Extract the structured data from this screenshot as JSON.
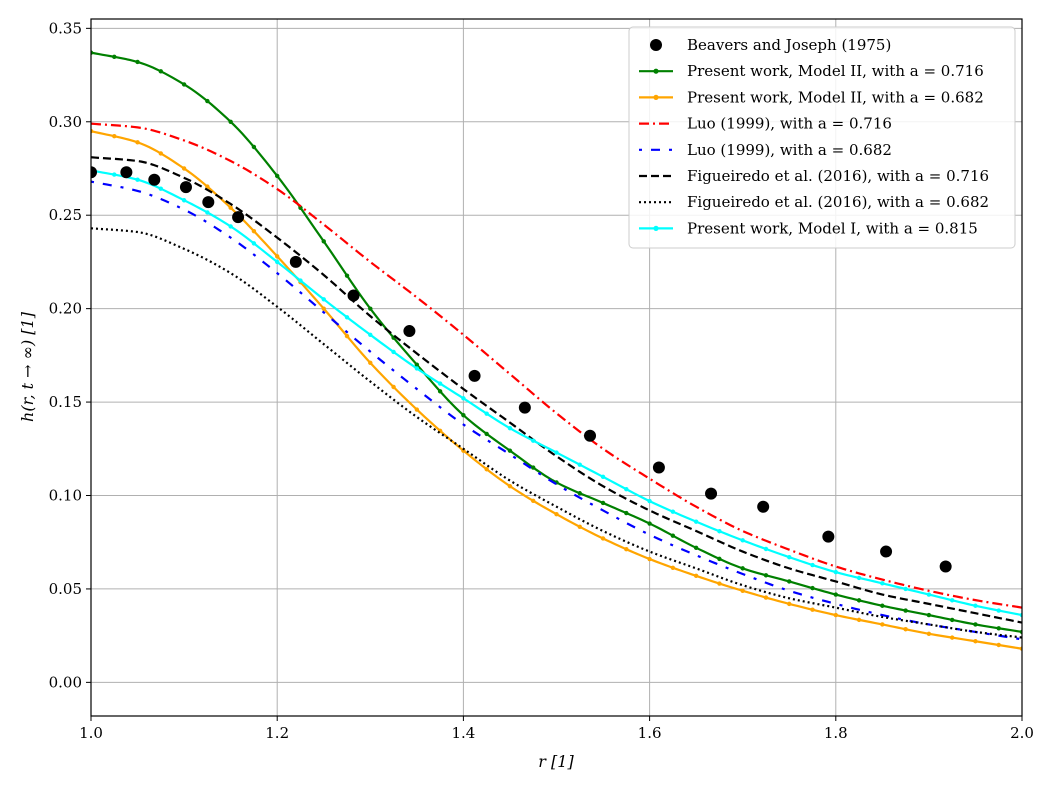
{
  "chart_data": {
    "type": "line",
    "title": "",
    "xlabel": "r [1]",
    "ylabel": "h(r, t → ∞) [1]",
    "xlim": [
      1.0,
      2.0
    ],
    "ylim": [
      -0.018,
      0.355
    ],
    "grid": true,
    "legend_position": "top-right",
    "xticks": [
      1.0,
      1.2,
      1.4,
      1.6,
      1.8,
      2.0
    ],
    "xtick_labels": [
      "1.0",
      "1.2",
      "1.4",
      "1.6",
      "1.8",
      "2.0"
    ],
    "yticks": [
      0.0,
      0.05,
      0.1,
      0.15,
      0.2,
      0.25,
      0.3,
      0.35
    ],
    "ytick_labels": [
      "0.00",
      "0.05",
      "0.10",
      "0.15",
      "0.20",
      "0.25",
      "0.30",
      "0.35"
    ],
    "series": [
      {
        "name": "Beavers and Joseph (1975)",
        "style": "points",
        "color": "#000000",
        "x": [
          1.0,
          1.038,
          1.068,
          1.102,
          1.126,
          1.158,
          1.22,
          1.282,
          1.342,
          1.412,
          1.466,
          1.536,
          1.61,
          1.666,
          1.722,
          1.792,
          1.854,
          1.918
        ],
        "y": [
          0.273,
          0.273,
          0.269,
          0.265,
          0.257,
          0.249,
          0.225,
          0.207,
          0.188,
          0.164,
          0.147,
          0.132,
          0.115,
          0.101,
          0.094,
          0.078,
          0.07,
          0.062
        ]
      },
      {
        "name": "Present work, Model II, with a = 0.716",
        "style": "solid-markers",
        "color": "#008000",
        "x": [
          1.0,
          1.05,
          1.1,
          1.15,
          1.2,
          1.25,
          1.3,
          1.35,
          1.4,
          1.45,
          1.5,
          1.55,
          1.6,
          1.65,
          1.7,
          1.75,
          1.8,
          1.85,
          1.9,
          1.95,
          2.0
        ],
        "y": [
          0.337,
          0.332,
          0.32,
          0.3,
          0.271,
          0.236,
          0.2,
          0.17,
          0.143,
          0.124,
          0.107,
          0.096,
          0.085,
          0.072,
          0.061,
          0.054,
          0.047,
          0.041,
          0.036,
          0.031,
          0.027
        ]
      },
      {
        "name": "Present work, Model II, with a = 0.682",
        "style": "solid-markers",
        "color": "#ffa500",
        "x": [
          1.0,
          1.05,
          1.1,
          1.15,
          1.2,
          1.25,
          1.3,
          1.35,
          1.4,
          1.45,
          1.5,
          1.55,
          1.6,
          1.65,
          1.7,
          1.75,
          1.8,
          1.85,
          1.9,
          1.95,
          2.0
        ],
        "y": [
          0.295,
          0.289,
          0.275,
          0.254,
          0.228,
          0.2,
          0.171,
          0.146,
          0.124,
          0.105,
          0.09,
          0.077,
          0.066,
          0.057,
          0.049,
          0.042,
          0.036,
          0.031,
          0.026,
          0.022,
          0.018
        ]
      },
      {
        "name": "Luo (1999), with a = 0.716",
        "style": "dashdot",
        "color": "#ff0000",
        "x": [
          1.0,
          1.05,
          1.1,
          1.15,
          1.2,
          1.25,
          1.3,
          1.35,
          1.4,
          1.45,
          1.5,
          1.55,
          1.6,
          1.65,
          1.7,
          1.75,
          1.8,
          1.85,
          1.9,
          1.95,
          2.0
        ],
        "y": [
          0.299,
          0.297,
          0.29,
          0.279,
          0.264,
          0.245,
          0.225,
          0.206,
          0.186,
          0.165,
          0.144,
          0.125,
          0.109,
          0.094,
          0.081,
          0.071,
          0.062,
          0.055,
          0.049,
          0.044,
          0.04
        ]
      },
      {
        "name": "Luo (1999), with a = 0.682",
        "style": "dashdot-loose",
        "color": "#0000ff",
        "x": [
          1.0,
          1.05,
          1.1,
          1.15,
          1.2,
          1.25,
          1.3,
          1.35,
          1.4,
          1.45,
          1.5,
          1.55,
          1.6,
          1.65,
          1.7,
          1.75,
          1.8,
          1.85,
          1.9,
          1.95,
          2.0
        ],
        "y": [
          0.268,
          0.263,
          0.253,
          0.238,
          0.219,
          0.198,
          0.177,
          0.157,
          0.138,
          0.122,
          0.106,
          0.092,
          0.079,
          0.068,
          0.058,
          0.049,
          0.042,
          0.036,
          0.031,
          0.027,
          0.023
        ]
      },
      {
        "name": "Figueiredo et al. (2016), with a = 0.716",
        "style": "dashed",
        "color": "#000000",
        "x": [
          1.0,
          1.05,
          1.1,
          1.15,
          1.2,
          1.25,
          1.3,
          1.35,
          1.4,
          1.45,
          1.5,
          1.55,
          1.6,
          1.65,
          1.7,
          1.75,
          1.8,
          1.85,
          1.9,
          1.95,
          2.0
        ],
        "y": [
          0.281,
          0.279,
          0.27,
          0.256,
          0.238,
          0.218,
          0.196,
          0.176,
          0.157,
          0.139,
          0.121,
          0.105,
          0.092,
          0.081,
          0.07,
          0.061,
          0.054,
          0.047,
          0.042,
          0.037,
          0.032
        ]
      },
      {
        "name": "Figueiredo et al. (2016), with a = 0.682",
        "style": "dotted",
        "color": "#000000",
        "x": [
          1.0,
          1.05,
          1.1,
          1.15,
          1.2,
          1.25,
          1.3,
          1.35,
          1.4,
          1.45,
          1.5,
          1.55,
          1.6,
          1.65,
          1.7,
          1.75,
          1.8,
          1.85,
          1.9,
          1.95,
          2.0
        ],
        "y": [
          0.243,
          0.241,
          0.232,
          0.219,
          0.201,
          0.181,
          0.161,
          0.142,
          0.125,
          0.108,
          0.094,
          0.081,
          0.07,
          0.061,
          0.052,
          0.045,
          0.04,
          0.035,
          0.031,
          0.027,
          0.024
        ]
      },
      {
        "name": "Present work, Model I, with a = 0.815",
        "style": "solid-markers",
        "color": "#00ffff",
        "x": [
          1.0,
          1.05,
          1.1,
          1.15,
          1.2,
          1.25,
          1.3,
          1.35,
          1.4,
          1.45,
          1.5,
          1.55,
          1.6,
          1.65,
          1.7,
          1.75,
          1.8,
          1.85,
          1.9,
          1.95,
          2.0
        ],
        "y": [
          0.274,
          0.269,
          0.258,
          0.244,
          0.225,
          0.205,
          0.186,
          0.168,
          0.152,
          0.136,
          0.123,
          0.11,
          0.097,
          0.086,
          0.076,
          0.067,
          0.059,
          0.053,
          0.047,
          0.041,
          0.036
        ]
      }
    ]
  }
}
